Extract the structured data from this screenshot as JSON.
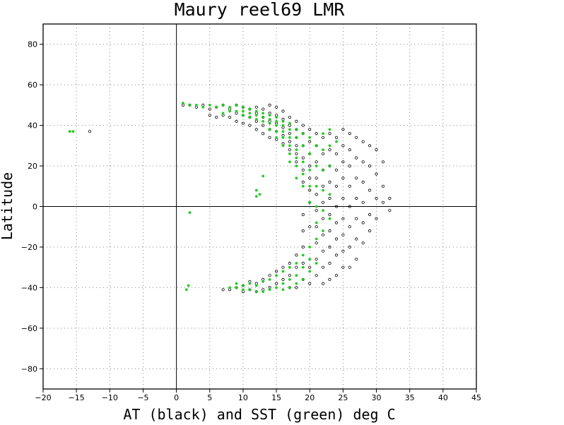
{
  "chart_data": {
    "type": "scatter",
    "title": "Maury reel69 LMR",
    "xlabel": "AT (black) and SST (green) deg C",
    "ylabel": "Latitude",
    "xlim": [
      -20,
      45
    ],
    "ylim": [
      -90,
      90
    ],
    "x_ticks": [
      -20,
      -15,
      -10,
      -5,
      0,
      5,
      10,
      15,
      20,
      25,
      30,
      35,
      40,
      45
    ],
    "y_ticks": [
      -80,
      -60,
      -40,
      -20,
      0,
      20,
      40,
      60,
      80
    ],
    "x_tick_labels": [
      "−20",
      "−15",
      "−10",
      "−5",
      "0",
      "5",
      "10",
      "15",
      "20",
      "25",
      "30",
      "35",
      "40",
      "45"
    ],
    "y_tick_labels": [
      "−80",
      "−60",
      "−40",
      "−20",
      "0",
      "20",
      "40",
      "60",
      "80"
    ],
    "grid": true,
    "zero_lines": true,
    "series": [
      {
        "color": "#000000",
        "marker": "open-circle",
        "points": [
          [
            -13,
            37
          ],
          [
            1,
            50
          ],
          [
            2,
            50
          ],
          [
            3,
            49
          ],
          [
            4,
            50
          ],
          [
            5,
            48
          ],
          [
            5,
            45
          ],
          [
            6,
            49
          ],
          [
            6,
            44
          ],
          [
            7,
            50
          ],
          [
            7,
            45
          ],
          [
            8,
            48
          ],
          [
            8,
            44
          ],
          [
            9,
            50
          ],
          [
            9,
            46
          ],
          [
            9,
            42
          ],
          [
            10,
            49
          ],
          [
            10,
            45
          ],
          [
            10,
            41
          ],
          [
            11,
            48
          ],
          [
            11,
            44
          ],
          [
            11,
            40
          ],
          [
            12,
            49
          ],
          [
            12,
            46
          ],
          [
            12,
            42
          ],
          [
            12,
            38
          ],
          [
            13,
            48
          ],
          [
            13,
            44
          ],
          [
            13,
            40
          ],
          [
            13,
            36
          ],
          [
            14,
            50
          ],
          [
            14,
            46
          ],
          [
            14,
            42
          ],
          [
            14,
            38
          ],
          [
            14,
            34
          ],
          [
            15,
            49
          ],
          [
            15,
            45
          ],
          [
            15,
            41
          ],
          [
            15,
            37
          ],
          [
            15,
            33
          ],
          [
            16,
            47
          ],
          [
            16,
            43
          ],
          [
            16,
            39
          ],
          [
            16,
            35
          ],
          [
            16,
            31
          ],
          [
            17,
            44
          ],
          [
            17,
            40
          ],
          [
            17,
            36
          ],
          [
            17,
            32
          ],
          [
            17,
            28
          ],
          [
            18,
            42
          ],
          [
            18,
            38
          ],
          [
            18,
            34
          ],
          [
            18,
            30
          ],
          [
            18,
            26
          ],
          [
            18,
            22
          ],
          [
            19,
            40
          ],
          [
            19,
            36
          ],
          [
            19,
            30
          ],
          [
            19,
            24
          ],
          [
            19,
            18
          ],
          [
            19,
            12
          ],
          [
            20,
            38
          ],
          [
            20,
            32
          ],
          [
            20,
            26
          ],
          [
            20,
            20
          ],
          [
            20,
            14
          ],
          [
            20,
            8
          ],
          [
            20,
            2
          ],
          [
            21,
            36
          ],
          [
            21,
            30
          ],
          [
            21,
            22
          ],
          [
            21,
            14
          ],
          [
            21,
            6
          ],
          [
            21,
            -2
          ],
          [
            21,
            -10
          ],
          [
            22,
            34
          ],
          [
            22,
            26
          ],
          [
            22,
            18
          ],
          [
            22,
            10
          ],
          [
            22,
            2
          ],
          [
            22,
            -6
          ],
          [
            22,
            -14
          ],
          [
            22,
            -22
          ],
          [
            23,
            36
          ],
          [
            23,
            28
          ],
          [
            23,
            20
          ],
          [
            23,
            12
          ],
          [
            23,
            4
          ],
          [
            23,
            -4
          ],
          [
            23,
            -12
          ],
          [
            23,
            -20
          ],
          [
            23,
            -28
          ],
          [
            24,
            34
          ],
          [
            24,
            26
          ],
          [
            24,
            18
          ],
          [
            24,
            10
          ],
          [
            24,
            0
          ],
          [
            24,
            -8
          ],
          [
            24,
            -16
          ],
          [
            24,
            -24
          ],
          [
            25,
            38
          ],
          [
            25,
            30
          ],
          [
            25,
            22
          ],
          [
            25,
            14
          ],
          [
            25,
            4
          ],
          [
            25,
            -6
          ],
          [
            25,
            -14
          ],
          [
            25,
            -22
          ],
          [
            25,
            -30
          ],
          [
            26,
            36
          ],
          [
            26,
            28
          ],
          [
            26,
            20
          ],
          [
            26,
            10
          ],
          [
            26,
            0
          ],
          [
            26,
            -10
          ],
          [
            26,
            -20
          ],
          [
            27,
            34
          ],
          [
            27,
            24
          ],
          [
            27,
            14
          ],
          [
            27,
            4
          ],
          [
            27,
            -6
          ],
          [
            27,
            -16
          ],
          [
            27,
            -26
          ],
          [
            28,
            32
          ],
          [
            28,
            22
          ],
          [
            28,
            12
          ],
          [
            28,
            2
          ],
          [
            28,
            -8
          ],
          [
            28,
            -18
          ],
          [
            29,
            30
          ],
          [
            29,
            20
          ],
          [
            29,
            8
          ],
          [
            29,
            -4
          ],
          [
            29,
            -12
          ],
          [
            30,
            28
          ],
          [
            30,
            16
          ],
          [
            30,
            4
          ],
          [
            30,
            -6
          ],
          [
            31,
            22
          ],
          [
            31,
            10
          ],
          [
            31,
            2
          ],
          [
            32,
            4
          ],
          [
            32,
            -2
          ],
          [
            19,
            -4
          ],
          [
            19,
            -12
          ],
          [
            19,
            -20
          ],
          [
            18,
            -24
          ],
          [
            18,
            -30
          ],
          [
            17,
            -28
          ],
          [
            17,
            -34
          ],
          [
            16,
            -30
          ],
          [
            16,
            -36
          ],
          [
            15,
            -32
          ],
          [
            15,
            -38
          ],
          [
            14,
            -34
          ],
          [
            14,
            -40
          ],
          [
            13,
            -36
          ],
          [
            13,
            -41
          ],
          [
            12,
            -38
          ],
          [
            12,
            -42
          ],
          [
            11,
            -37
          ],
          [
            11,
            -41
          ],
          [
            10,
            -39
          ],
          [
            10,
            -42
          ],
          [
            9,
            -40
          ],
          [
            8,
            -41
          ],
          [
            7,
            -41
          ],
          [
            20,
            -30
          ],
          [
            21,
            -26
          ],
          [
            21,
            -34
          ],
          [
            22,
            -30
          ],
          [
            20,
            -38
          ],
          [
            19,
            -36
          ],
          [
            18,
            -40
          ],
          [
            17,
            -40
          ],
          [
            24,
            -34
          ],
          [
            23,
            -36
          ],
          [
            26,
            -30
          ],
          [
            21,
            -18
          ],
          [
            20,
            -10
          ],
          [
            19,
            -28
          ],
          [
            22,
            -38
          ]
        ]
      },
      {
        "color": "#22cc22",
        "marker": "filled-circle",
        "points": [
          [
            -16,
            37
          ],
          [
            -15.5,
            37
          ],
          [
            2,
            -3
          ],
          [
            1.8,
            -39
          ],
          [
            1.5,
            -41
          ],
          [
            12,
            8
          ],
          [
            12,
            5
          ],
          [
            12.5,
            6
          ],
          [
            13,
            15
          ],
          [
            1,
            51
          ],
          [
            2,
            50
          ],
          [
            3,
            50
          ],
          [
            4,
            49
          ],
          [
            5,
            50
          ],
          [
            6,
            49
          ],
          [
            7,
            50
          ],
          [
            7,
            46
          ],
          [
            8,
            49
          ],
          [
            8,
            47
          ],
          [
            9,
            50
          ],
          [
            9,
            47
          ],
          [
            10,
            49
          ],
          [
            10,
            47
          ],
          [
            10,
            45
          ],
          [
            11,
            48
          ],
          [
            11,
            46
          ],
          [
            11,
            44
          ],
          [
            12,
            47
          ],
          [
            12,
            45
          ],
          [
            12,
            43
          ],
          [
            13,
            46
          ],
          [
            13,
            44
          ],
          [
            13,
            42
          ],
          [
            14,
            45
          ],
          [
            14,
            43
          ],
          [
            14,
            41
          ],
          [
            14,
            38
          ],
          [
            15,
            44
          ],
          [
            15,
            42
          ],
          [
            15,
            40
          ],
          [
            15,
            37
          ],
          [
            15,
            34
          ],
          [
            16,
            42
          ],
          [
            16,
            40
          ],
          [
            16,
            37
          ],
          [
            16,
            34
          ],
          [
            16,
            30
          ],
          [
            17,
            41
          ],
          [
            17,
            38
          ],
          [
            17,
            34
          ],
          [
            17,
            30
          ],
          [
            17,
            26
          ],
          [
            18,
            38
          ],
          [
            18,
            34
          ],
          [
            18,
            28
          ],
          [
            18,
            24
          ],
          [
            18,
            20
          ],
          [
            19,
            36
          ],
          [
            19,
            30
          ],
          [
            19,
            22
          ],
          [
            19,
            16
          ],
          [
            19,
            10
          ],
          [
            20,
            34
          ],
          [
            20,
            26
          ],
          [
            20,
            18
          ],
          [
            20,
            10
          ],
          [
            20,
            2
          ],
          [
            21,
            30
          ],
          [
            21,
            20
          ],
          [
            21,
            10
          ],
          [
            21,
            0
          ],
          [
            21,
            -8
          ],
          [
            22,
            36
          ],
          [
            22,
            28
          ],
          [
            22,
            18
          ],
          [
            22,
            8
          ],
          [
            22,
            -2
          ],
          [
            22,
            -12
          ],
          [
            23,
            30
          ],
          [
            23,
            20
          ],
          [
            23,
            6
          ],
          [
            23,
            -6
          ],
          [
            21,
            -16
          ],
          [
            20,
            -20
          ],
          [
            20,
            -26
          ],
          [
            19,
            -24
          ],
          [
            19,
            -30
          ],
          [
            18,
            -28
          ],
          [
            18,
            -34
          ],
          [
            17,
            -30
          ],
          [
            17,
            -36
          ],
          [
            16,
            -32
          ],
          [
            16,
            -38
          ],
          [
            15,
            -34
          ],
          [
            15,
            -40
          ],
          [
            14,
            -36
          ],
          [
            14,
            -41
          ],
          [
            13,
            -37
          ],
          [
            13,
            -42
          ],
          [
            12,
            -39
          ],
          [
            12,
            -42
          ],
          [
            11,
            -38
          ],
          [
            11,
            -41
          ],
          [
            10,
            -39
          ],
          [
            10,
            -41
          ],
          [
            9,
            -40
          ],
          [
            9,
            -38
          ],
          [
            8,
            -40
          ],
          [
            20,
            -32
          ],
          [
            21,
            -28
          ],
          [
            19,
            -36
          ],
          [
            18,
            -38
          ],
          [
            17,
            -40
          ],
          [
            16,
            -41
          ],
          [
            18,
            14
          ],
          [
            17,
            22
          ],
          [
            24,
            32
          ],
          [
            23,
            38
          ]
        ]
      }
    ]
  }
}
